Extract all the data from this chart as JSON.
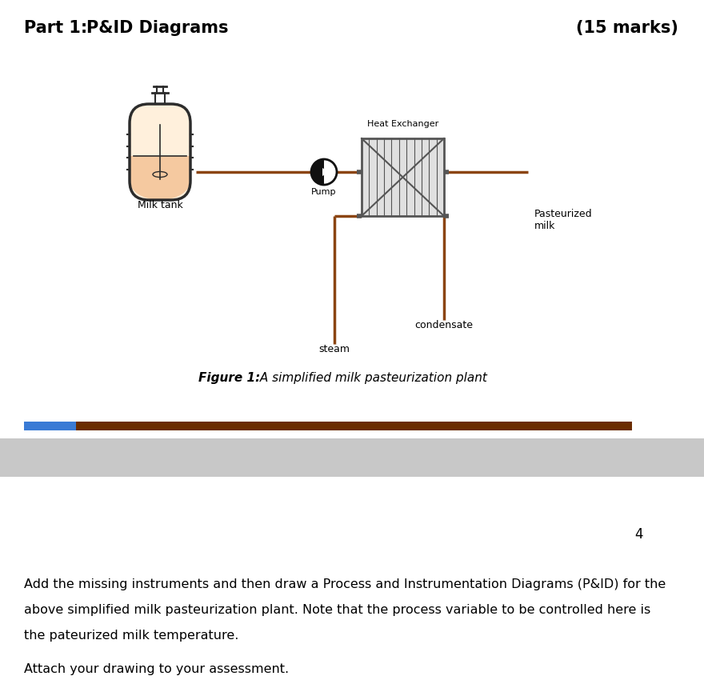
{
  "title_part": "Part 1:",
  "title_main": "P&ID Diagrams",
  "title_marks": "(15 marks)",
  "title_fontsize": 15,
  "fig_caption_bold": "Figure 1:",
  "fig_caption_italic": " A simplified milk pasteurization plant",
  "caption_fontsize": 11,
  "label_milk_tank": "Milk tank",
  "label_pump": "Pump",
  "label_heat_exchanger": "Heat Exchanger",
  "label_pasteurized_milk": "Pasteurized\nmilk",
  "label_steam": "steam",
  "label_condensate": "condensate",
  "pipe_color": "#8B4513",
  "pipe_linewidth": 2.5,
  "tank_body_color": "#FFF0DC",
  "tank_liquid_color": "#F5C9A0",
  "tank_outline_color": "#2c2c2c",
  "hx_fill_color": "#e0e0e0",
  "hx_line_color": "#555555",
  "pump_color": "#111111",
  "separator_bar_color_blue": "#3a7bd5",
  "separator_bar_color_brown": "#6B2D00",
  "page_number": "4",
  "body_text_line1": "Add the missing instruments and then draw a Process and Instrumentation Diagrams (P&ID) for the",
  "body_text_line2": "above simplified milk pasteurization plant. Note that the process variable to be controlled here is",
  "body_text_line3": "the pateurized milk temperature.",
  "body_text_line4": "Attach your drawing to your assessment.",
  "body_fontsize": 11.5
}
